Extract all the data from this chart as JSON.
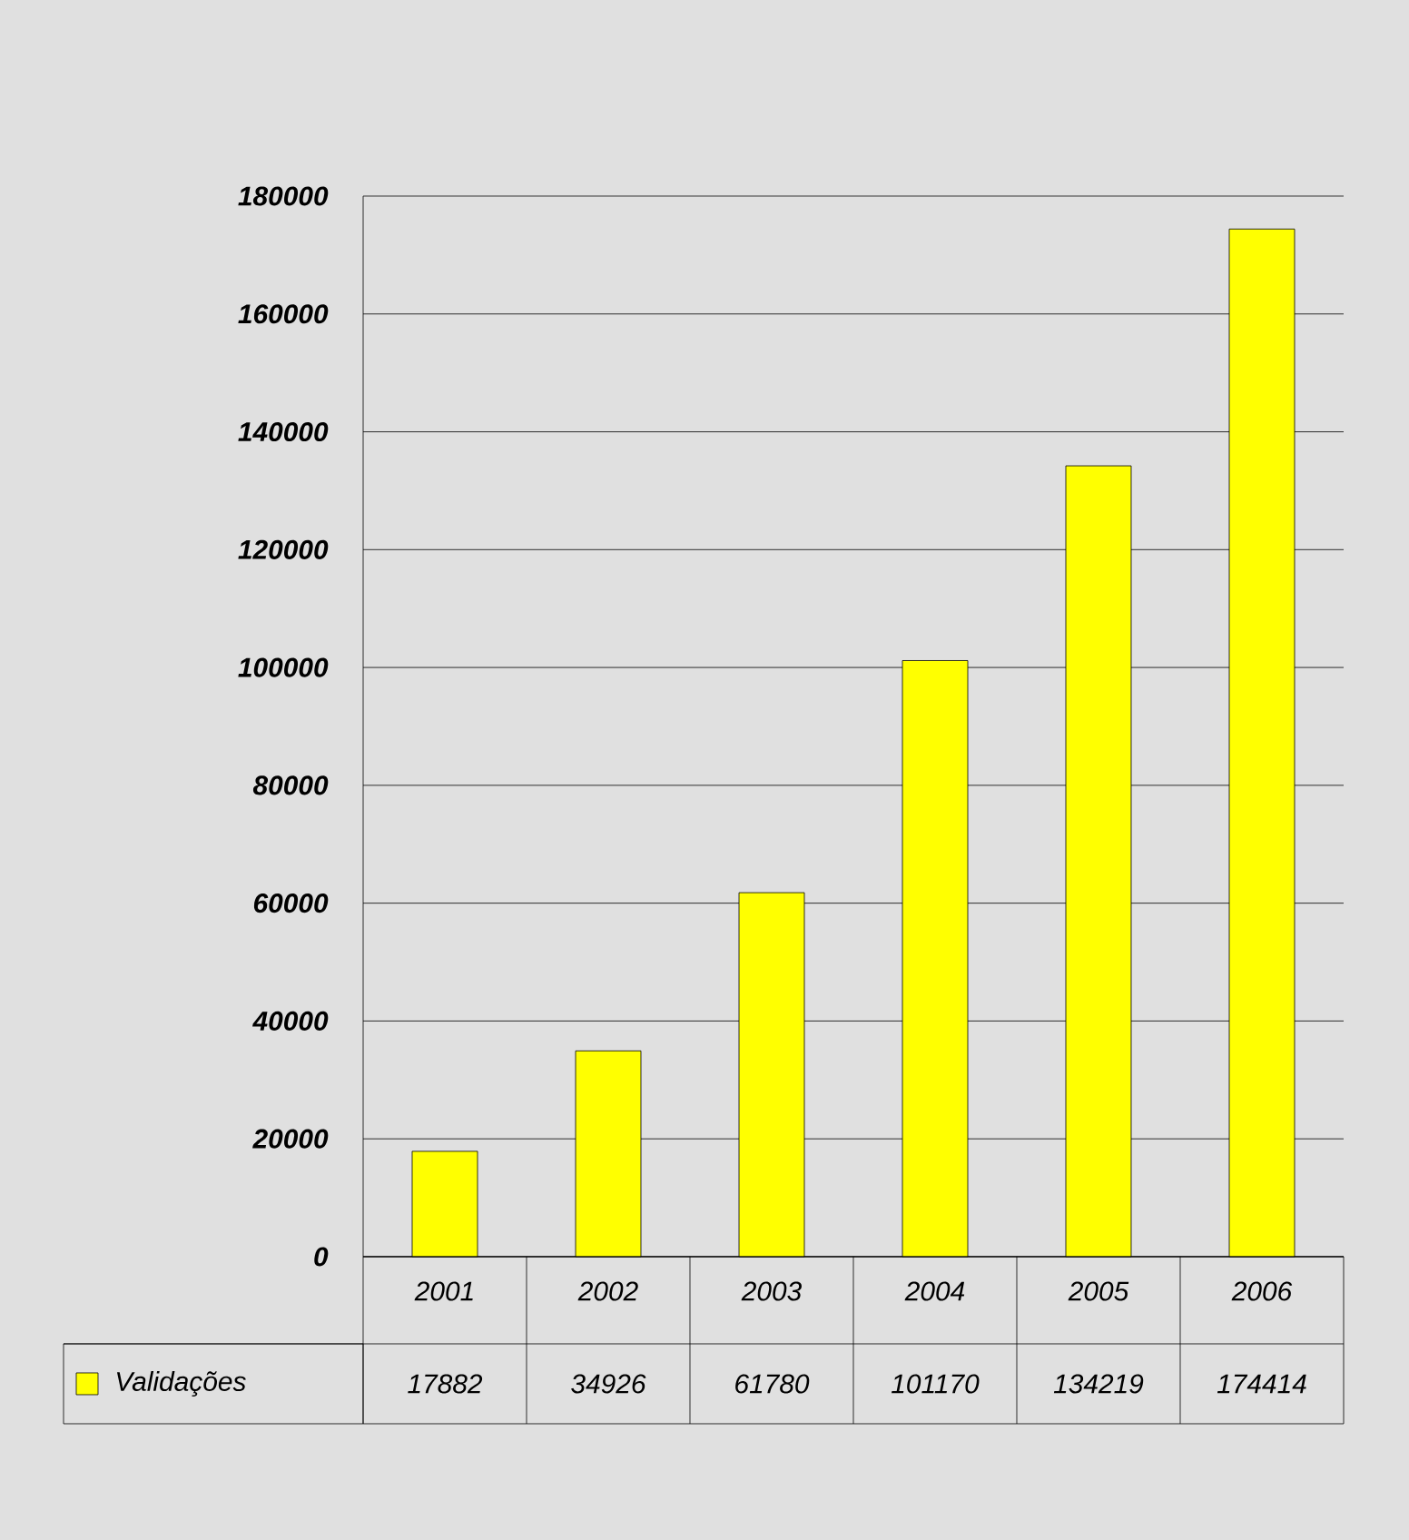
{
  "chart_data": {
    "type": "bar",
    "categories": [
      "2001",
      "2002",
      "2003",
      "2004",
      "2005",
      "2006"
    ],
    "series": [
      {
        "name": "Validações",
        "color": "#ffff00",
        "values": [
          17882,
          34926,
          61780,
          101170,
          134219,
          174414
        ]
      }
    ],
    "ylim": [
      0,
      180000
    ],
    "yticks": [
      0,
      20000,
      40000,
      60000,
      80000,
      100000,
      120000,
      140000,
      160000,
      180000
    ],
    "grid": "y",
    "legend": "bottom",
    "data_labels": true
  }
}
